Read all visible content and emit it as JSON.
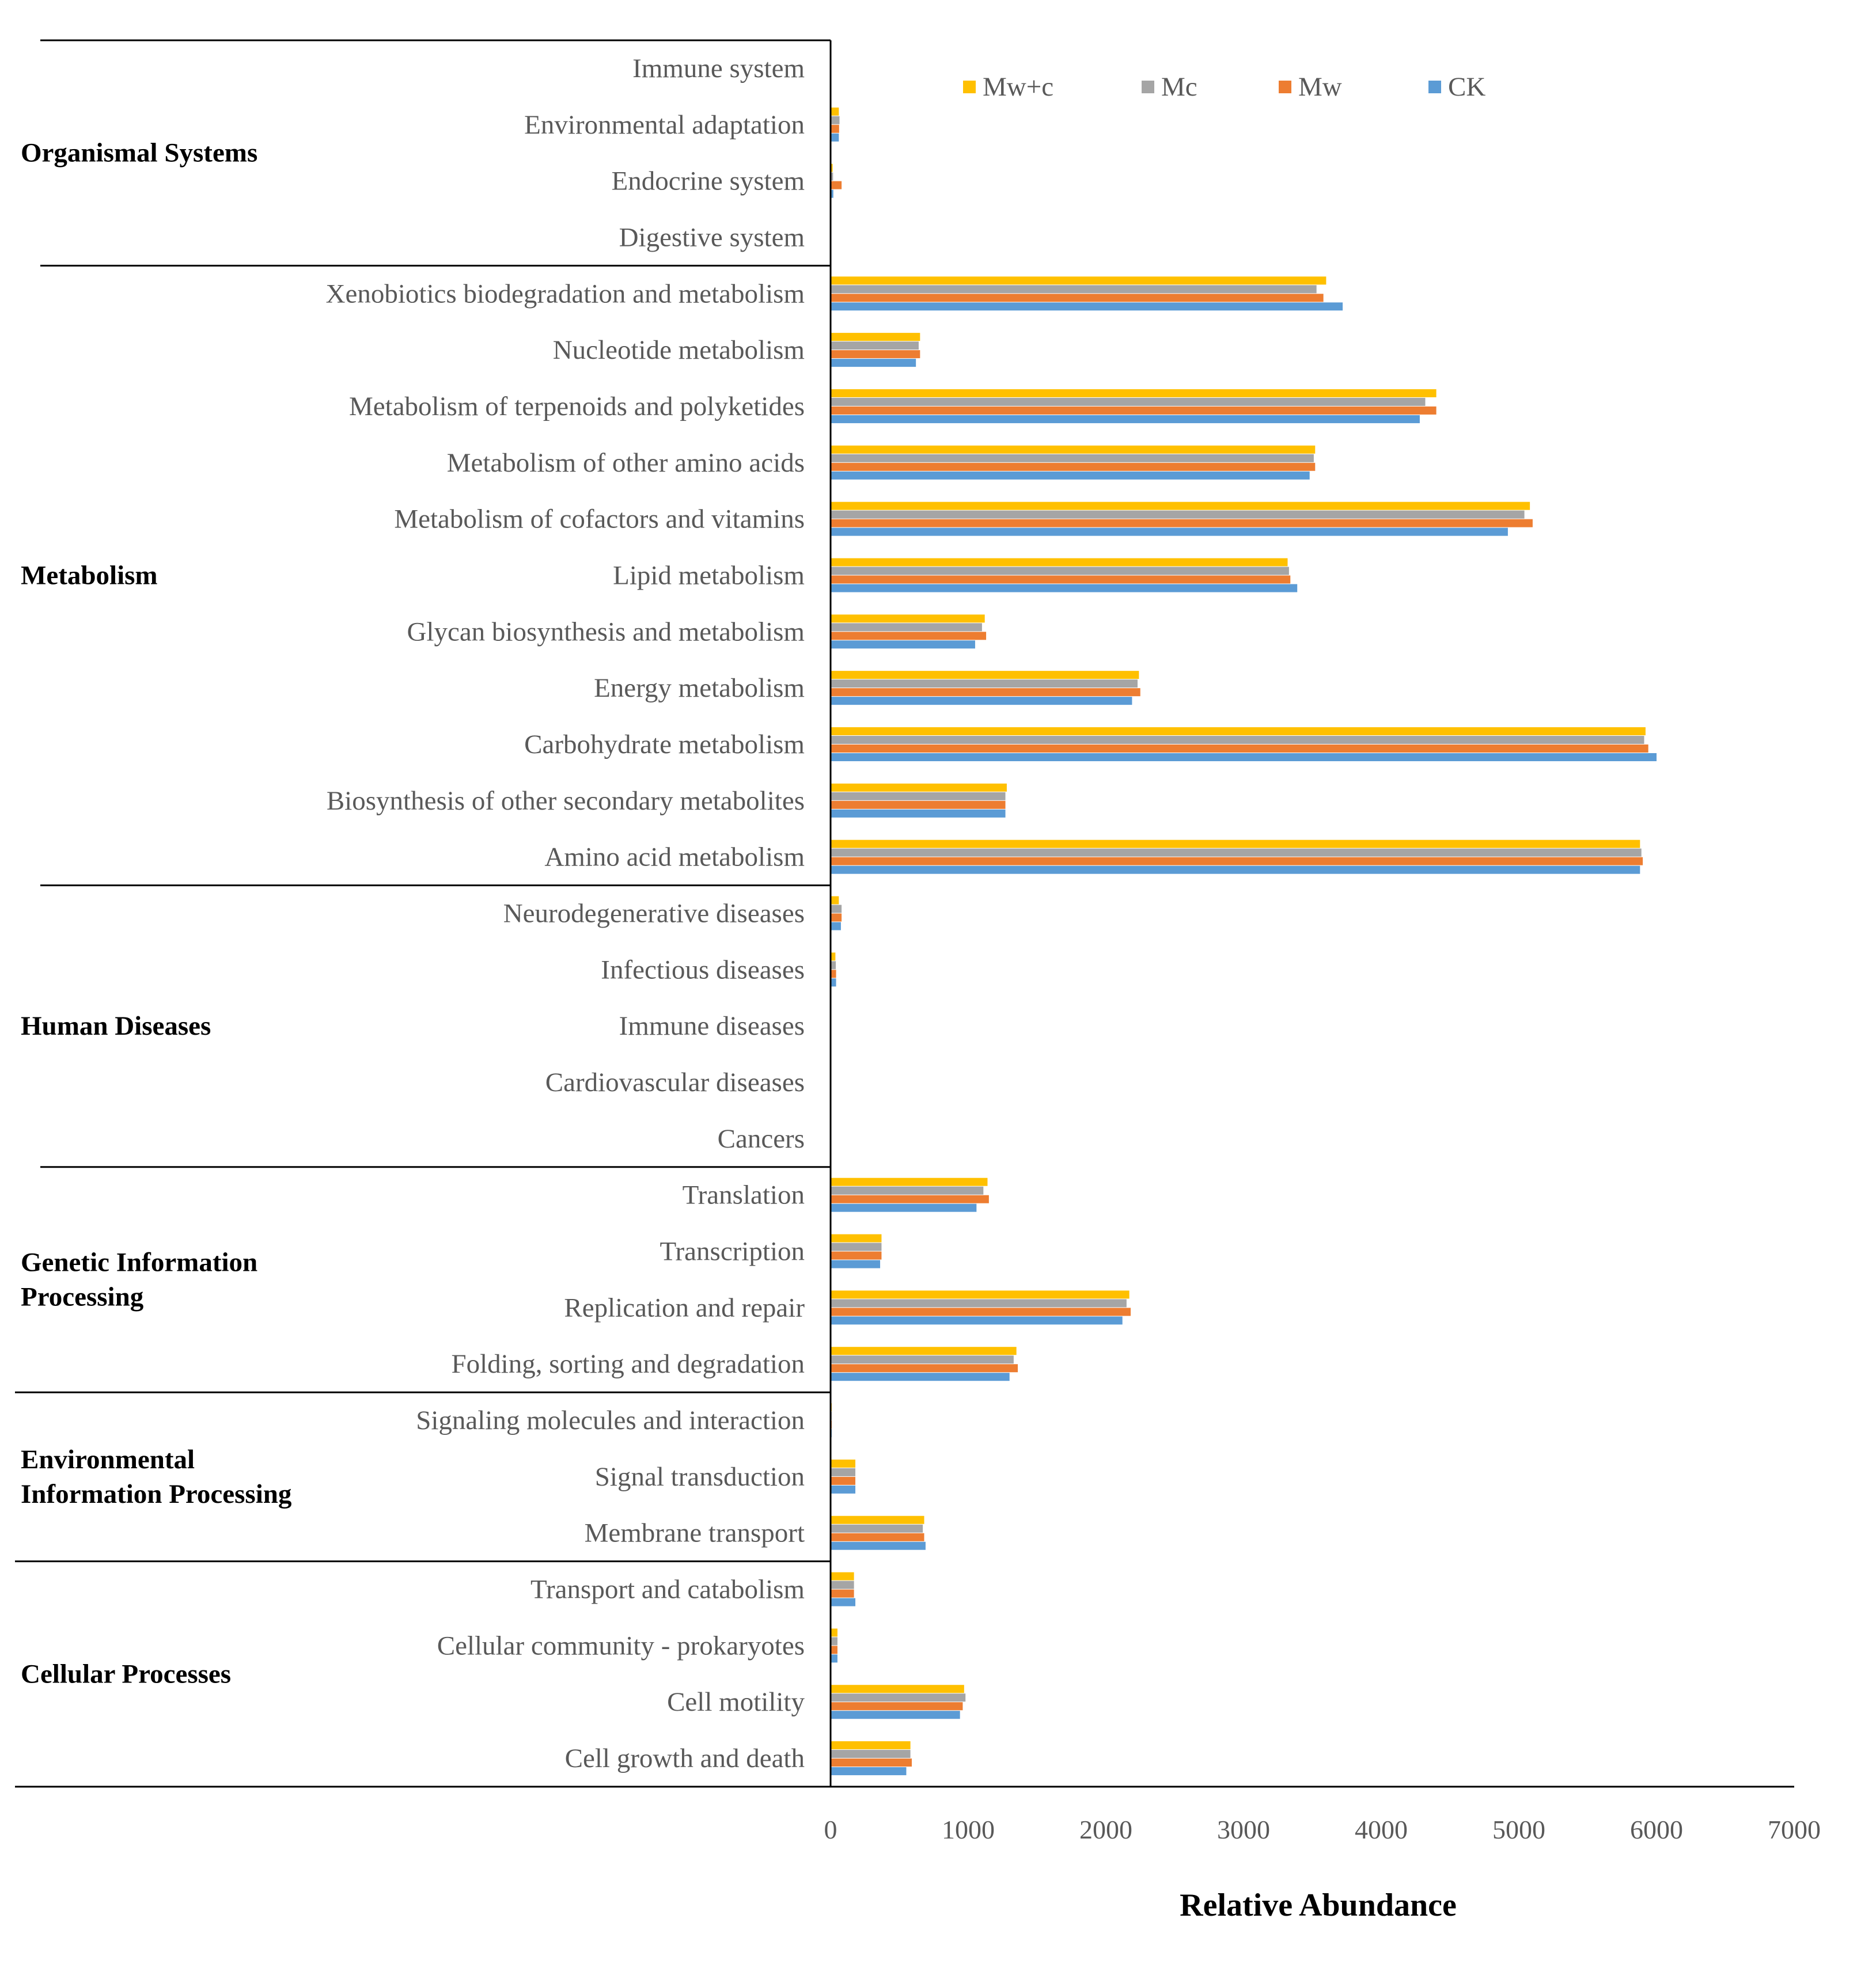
{
  "chart_data": {
    "type": "bar",
    "orientation": "horizontal",
    "xlabel": "Relative Abundance",
    "ylabel": "",
    "xlim": [
      0,
      7000
    ],
    "xticks": [
      "0",
      "1000",
      "2000",
      "3000",
      "4000",
      "5000",
      "6000",
      "7000"
    ],
    "legend_position": "top-right",
    "grid": false,
    "legend": [
      {
        "name": "Mw+c",
        "color": "#FFC000"
      },
      {
        "name": "Mc",
        "color": "#A5A5A5"
      },
      {
        "name": "Mw",
        "color": "#ED7D31"
      },
      {
        "name": "CK",
        "color": "#5B9BD5"
      }
    ],
    "groups": [
      {
        "label": "Organismal Systems",
        "lines": [
          "Organismal Systems"
        ],
        "categories": [
          "Immune system",
          "Environmental adaptation",
          "Endocrine system",
          "Digestive system"
        ]
      },
      {
        "label": "Metabolism",
        "lines": [
          "Metabolism"
        ],
        "categories": [
          "Xenobiotics biodegradation and metabolism",
          "Nucleotide metabolism",
          "Metabolism of terpenoids and polyketides",
          "Metabolism of other amino acids",
          "Metabolism of cofactors and vitamins",
          "Lipid metabolism",
          "Glycan biosynthesis and metabolism",
          "Energy metabolism",
          "Carbohydrate metabolism",
          "Biosynthesis of other secondary metabolites",
          "Amino acid metabolism"
        ]
      },
      {
        "label": "Human Diseases",
        "lines": [
          "Human Diseases"
        ],
        "categories": [
          "Neurodegenerative diseases",
          "Infectious diseases",
          "Immune diseases",
          "Cardiovascular diseases",
          "Cancers"
        ]
      },
      {
        "label": "Genetic Information Processing",
        "lines": [
          "Genetic Information",
          "Processing"
        ],
        "categories": [
          "Translation",
          "Transcription",
          "Replication and repair",
          "Folding, sorting and degradation"
        ]
      },
      {
        "label": "Environmental Information Processing",
        "lines": [
          "Environmental",
          "Information Processing"
        ],
        "categories": [
          "Signaling molecules and interaction",
          "Signal transduction",
          "Membrane transport"
        ]
      },
      {
        "label": "Cellular Processes",
        "lines": [
          "Cellular Processes"
        ],
        "categories": [
          "Transport and catabolism",
          "Cellular community - prokaryotes",
          "Cell motility",
          "Cell growth and death"
        ]
      }
    ],
    "categories": [
      "Immune system",
      "Environmental adaptation",
      "Endocrine system",
      "Digestive system",
      "Xenobiotics biodegradation and metabolism",
      "Nucleotide metabolism",
      "Metabolism of terpenoids and polyketides",
      "Metabolism of other amino acids",
      "Metabolism of cofactors and vitamins",
      "Lipid metabolism",
      "Glycan biosynthesis and metabolism",
      "Energy metabolism",
      "Carbohydrate metabolism",
      "Biosynthesis of other secondary metabolites",
      "Amino acid metabolism",
      "Neurodegenerative diseases",
      "Infectious diseases",
      "Immune diseases",
      "Cardiovascular diseases",
      "Cancers",
      "Translation",
      "Transcription",
      "Replication and repair",
      "Folding, sorting and degradation",
      "Signaling molecules and interaction",
      "Signal transduction",
      "Membrane transport",
      "Transport and catabolism",
      "Cellular community - prokaryotes",
      "Cell motility",
      "Cell growth and death"
    ],
    "series": [
      {
        "name": "Mw+c",
        "color": "#FFC000",
        "values": [
          2,
          60,
          15,
          1,
          3600,
          650,
          4400,
          3520,
          5080,
          3320,
          1120,
          2240,
          5920,
          1280,
          5880,
          60,
          35,
          2,
          2,
          3,
          1140,
          370,
          2170,
          1350,
          8,
          180,
          680,
          170,
          50,
          970,
          580
        ]
      },
      {
        "name": "Mc",
        "color": "#A5A5A5",
        "values": [
          2,
          65,
          18,
          1,
          3530,
          640,
          4320,
          3510,
          5040,
          3330,
          1100,
          2230,
          5910,
          1270,
          5890,
          80,
          38,
          2,
          2,
          3,
          1110,
          370,
          2150,
          1330,
          8,
          180,
          670,
          170,
          50,
          980,
          580
        ]
      },
      {
        "name": "Mw",
        "color": "#ED7D31",
        "values": [
          2,
          62,
          80,
          1,
          3580,
          650,
          4400,
          3520,
          5100,
          3340,
          1130,
          2250,
          5940,
          1270,
          5900,
          80,
          40,
          2,
          2,
          3,
          1150,
          370,
          2180,
          1360,
          8,
          180,
          680,
          170,
          50,
          960,
          590
        ]
      },
      {
        "name": "CK",
        "color": "#5B9BD5",
        "values": [
          2,
          60,
          20,
          1,
          3720,
          620,
          4280,
          3480,
          4920,
          3390,
          1050,
          2190,
          6000,
          1270,
          5880,
          75,
          40,
          2,
          2,
          3,
          1060,
          360,
          2120,
          1300,
          8,
          180,
          690,
          180,
          50,
          940,
          550
        ]
      }
    ]
  }
}
